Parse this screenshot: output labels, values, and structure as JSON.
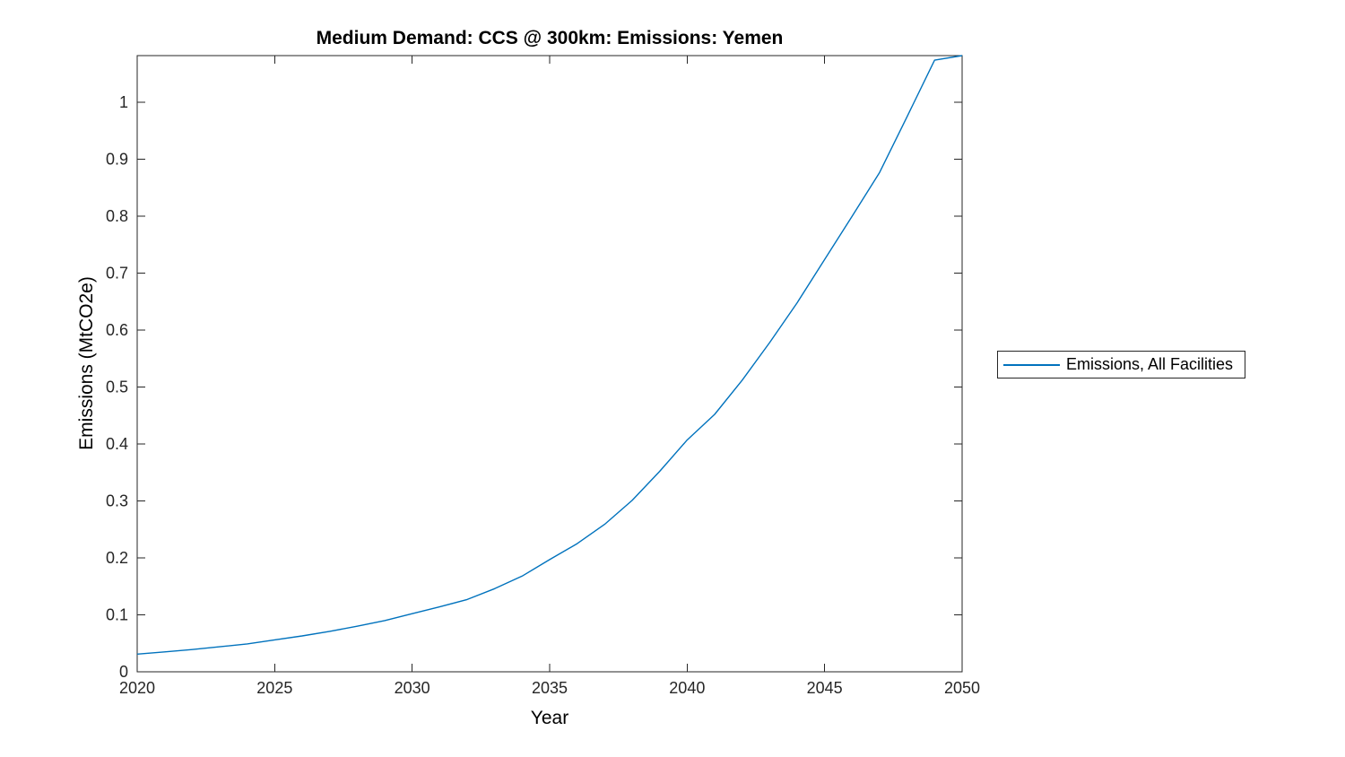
{
  "figure": {
    "title": "Medium Demand: CCS @ 300km: Emissions: Yemen",
    "xlabel": "Year",
    "ylabel": "Emissions (MtCO2e)",
    "legend": {
      "items": [
        {
          "label": "Emissions, All Facilities",
          "color": "#0072BD"
        }
      ]
    },
    "colors": {
      "line": "#0072BD",
      "axis": "#262626",
      "tick_text": "#262626",
      "label_text": "#000000",
      "background": "#FFFFFF"
    }
  },
  "chart_data": {
    "type": "line",
    "title": "Medium Demand: CCS @ 300km: Emissions: Yemen",
    "xlabel": "Year",
    "ylabel": "Emissions (MtCO2e)",
    "x": [
      2020,
      2021,
      2022,
      2023,
      2024,
      2025,
      2026,
      2027,
      2028,
      2029,
      2030,
      2031,
      2032,
      2033,
      2034,
      2035,
      2036,
      2037,
      2038,
      2039,
      2040,
      2041,
      2042,
      2043,
      2044,
      2045,
      2046,
      2047,
      2048,
      2049,
      2050
    ],
    "series": [
      {
        "name": "Emissions, All Facilities",
        "color": "#0072BD",
        "values": [
          0.031,
          0.035,
          0.039,
          0.044,
          0.049,
          0.056,
          0.063,
          0.071,
          0.08,
          0.09,
          0.102,
          0.114,
          0.127,
          0.146,
          0.168,
          0.197,
          0.225,
          0.259,
          0.301,
          0.352,
          0.407,
          0.452,
          0.512,
          0.578,
          0.648,
          0.724,
          0.8,
          0.877,
          0.975,
          1.074,
          1.082
        ]
      }
    ],
    "xlim": [
      2020,
      2050
    ],
    "ylim": [
      0,
      1.082
    ],
    "xticks": [
      2020,
      2025,
      2030,
      2035,
      2040,
      2045,
      2050
    ],
    "yticks": [
      0,
      0.1,
      0.2,
      0.3,
      0.4,
      0.5,
      0.6,
      0.7,
      0.8,
      0.9,
      1
    ],
    "grid": false,
    "legend_position": "right-outside",
    "box": true
  }
}
